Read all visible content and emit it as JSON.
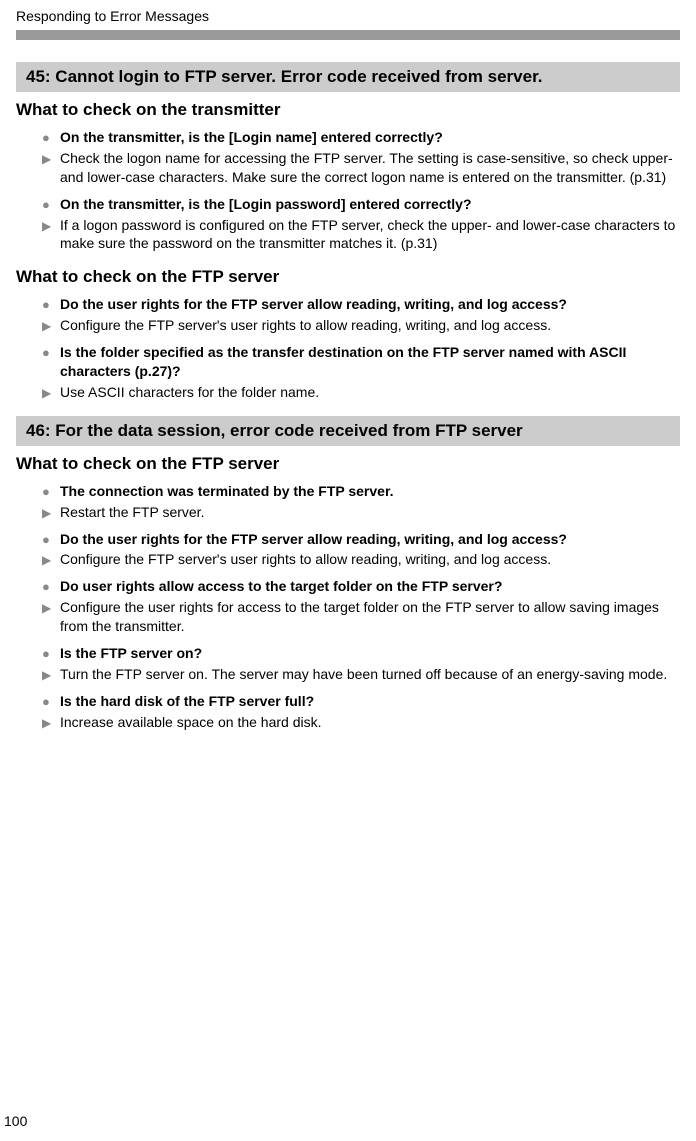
{
  "chapterTitle": "Responding to Error Messages",
  "pageNumber": "100",
  "errors": [
    {
      "header": "45:  Cannot login to FTP server. Error code received from server.",
      "sections": [
        {
          "heading": "What to check on the transmitter",
          "items": [
            {
              "q": "On the transmitter, is the [Login name] entered correctly?",
              "a": "Check the logon name for accessing the FTP server. The setting is case-sensitive, so check upper- and lower-case characters. Make sure the correct logon name is entered on the transmitter. (p.31)"
            },
            {
              "q": "On the transmitter, is the [Login password] entered correctly?",
              "a": "If a logon password is configured on the FTP server, check the upper- and lower-case characters to make sure the password on the transmitter matches it. (p.31)"
            }
          ]
        },
        {
          "heading": "What to check on the FTP server",
          "items": [
            {
              "q": "Do the user rights for the FTP server allow reading, writing, and log access?",
              "a": "Configure the FTP server's user rights to allow reading, writing, and log access."
            },
            {
              "q": "Is the folder specified as the transfer destination on the FTP server named with ASCII characters (p.27)?",
              "a": "Use ASCII characters for the folder name."
            }
          ]
        }
      ]
    },
    {
      "header": "46:  For the data session, error code received from FTP server",
      "sections": [
        {
          "heading": "What to check on the FTP server",
          "items": [
            {
              "q": "The connection was terminated by the FTP server.",
              "a": "Restart the FTP server."
            },
            {
              "q": "Do the user rights for the FTP server allow reading, writing, and log access?",
              "a": "Configure the FTP server's user rights to allow reading, writing, and log access."
            },
            {
              "q": "Do user rights allow access to the target folder on the FTP server?",
              "a": "Configure the user rights for access to the target folder on the FTP server to allow saving images from the transmitter."
            },
            {
              "q": "Is the FTP server on?",
              "a": "Turn the FTP server on. The server may have been turned off because of an energy-saving mode."
            },
            {
              "q": "Is the hard disk of the FTP server full?",
              "a": "Increase available space on the hard disk."
            }
          ]
        }
      ]
    }
  ]
}
